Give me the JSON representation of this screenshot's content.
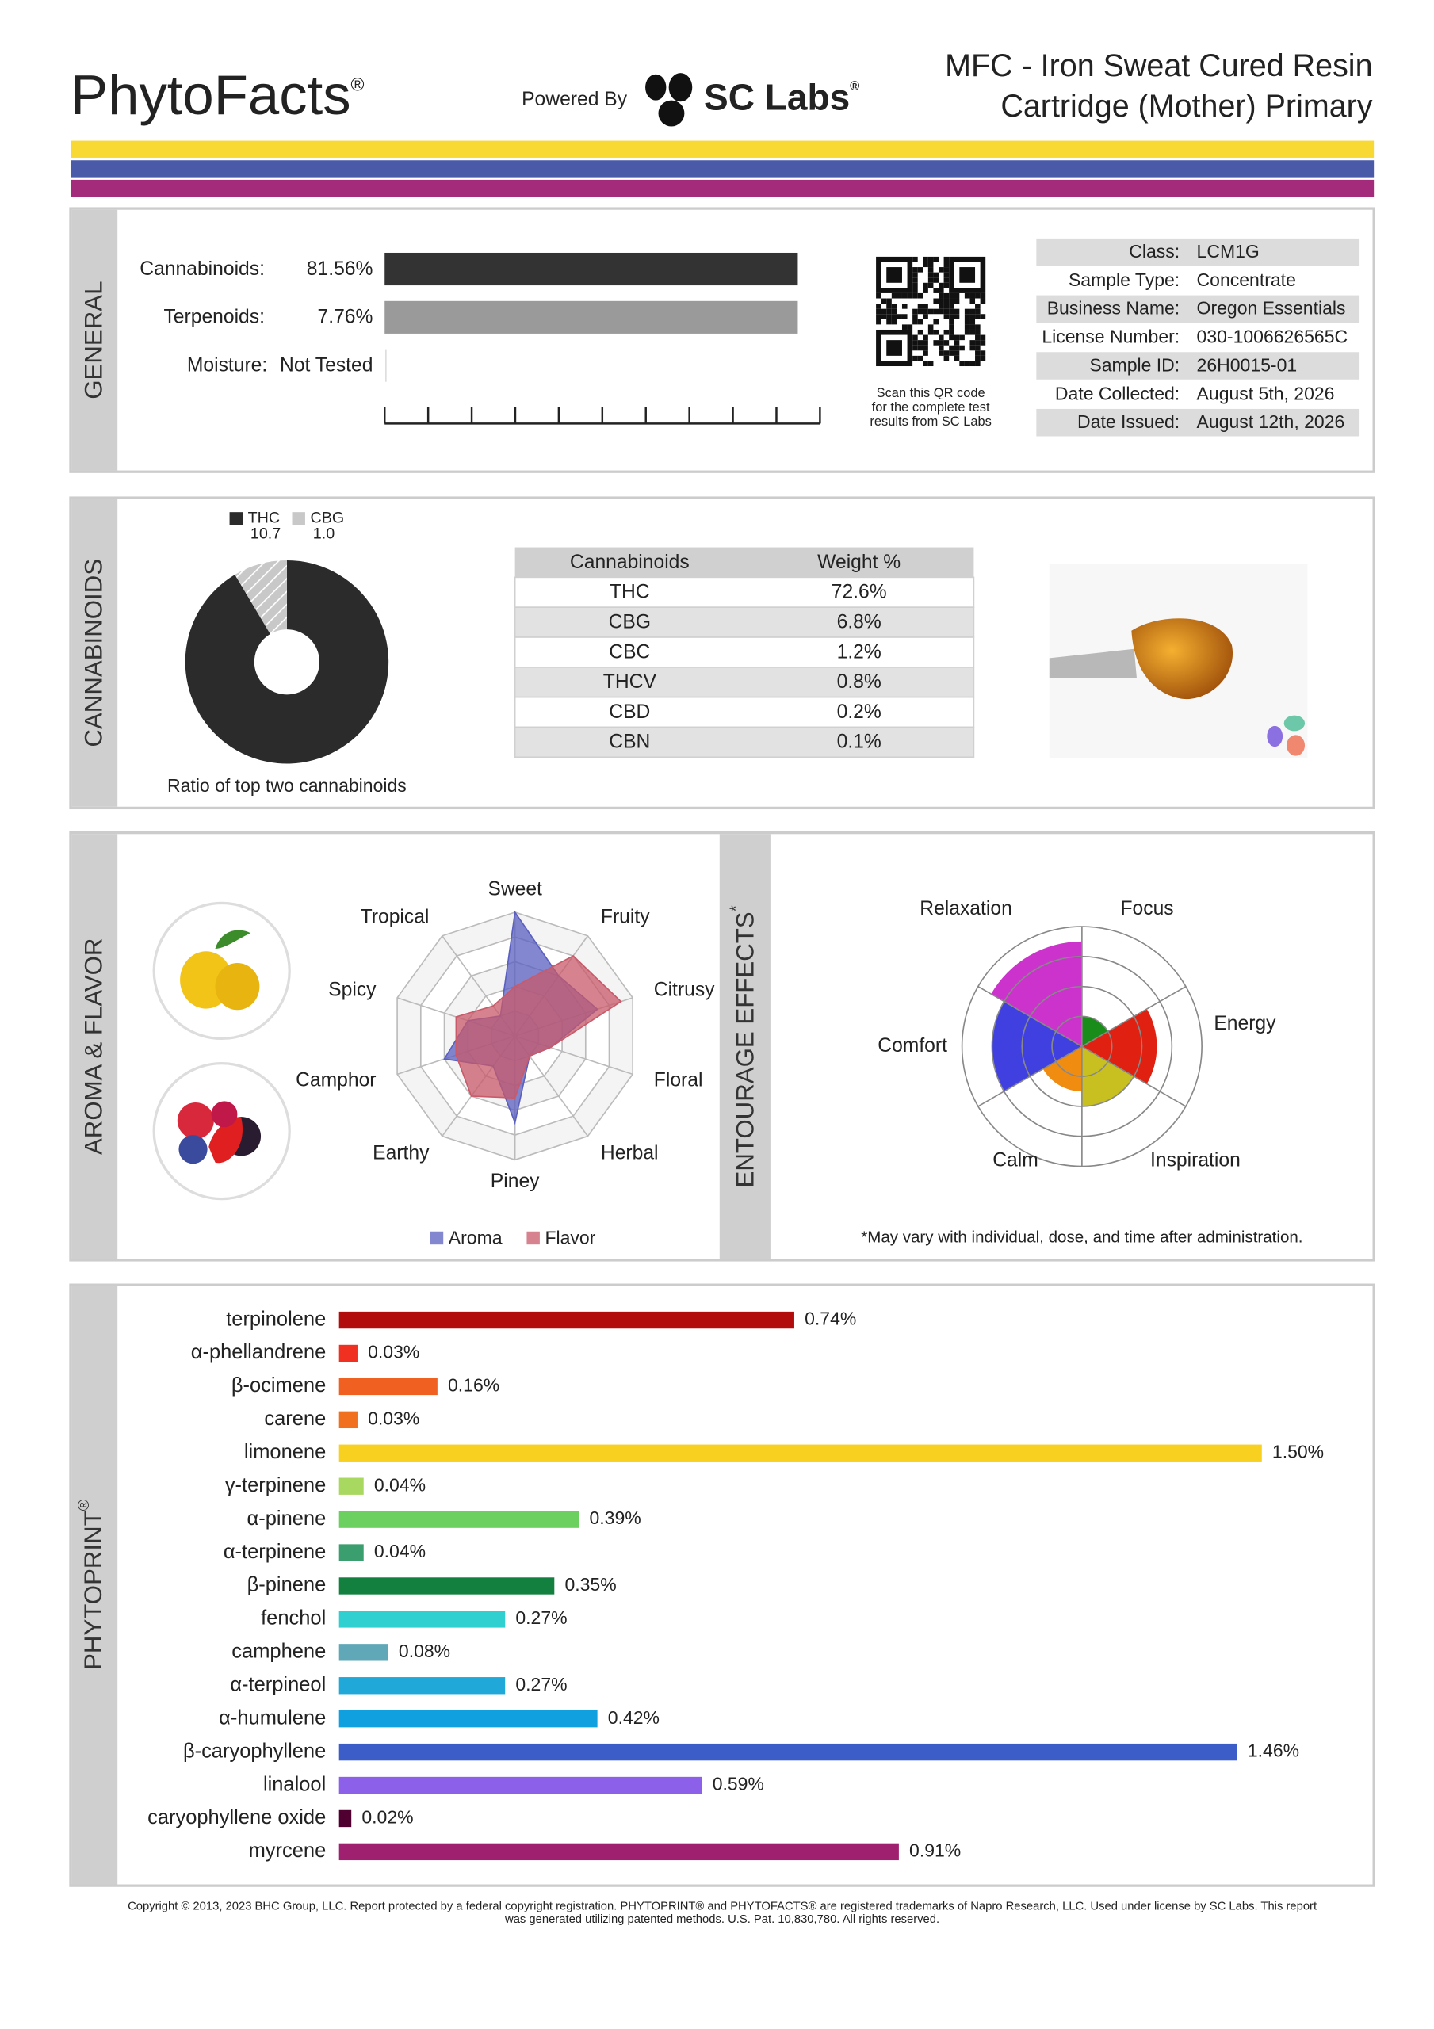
{
  "header": {
    "brand": "PhytoFacts",
    "registered": "®",
    "powered_by": "Powered By",
    "lab": "SC Labs",
    "title": [
      "MFC - Iron Sweat Cured Resin",
      "Cartridge (Mother) Primary"
    ]
  },
  "general": {
    "section": "GENERAL",
    "rows": [
      [
        "Cannabinoids:",
        "81.56%"
      ],
      [
        "Terpenoids:",
        "7.76%"
      ],
      [
        "Moisture:",
        "Not Tested"
      ]
    ],
    "qr_caption": [
      "Scan this QR code",
      "for the complete test",
      "results from SC Labs"
    ],
    "info": [
      [
        "Class:",
        "LCM1G"
      ],
      [
        "Sample Type:",
        "Concentrate"
      ],
      [
        "Business Name:",
        "Oregon Essentials"
      ],
      [
        "License Number:",
        "030-1006626565C"
      ],
      [
        "Sample ID:",
        "26H0015-01"
      ],
      [
        "Date Collected:",
        "August 5th, 2026"
      ],
      [
        "Date Issued:",
        "August 12th, 2026"
      ]
    ]
  },
  "cannabinoids": {
    "section": "CANNABINOIDS",
    "chart_data": {
      "type": "pie",
      "categories": [
        "THC",
        "CBG"
      ],
      "values": [
        10.7,
        1.0
      ],
      "value_labels": [
        "10.7",
        "1.0"
      ],
      "colors": [
        "#2b2b2b",
        "#c8c8c8"
      ],
      "caption": "Ratio of top two cannabinoids"
    },
    "table": {
      "header": [
        "Cannabinoids",
        "Weight %"
      ],
      "rows": [
        [
          "THC",
          "72.6%"
        ],
        [
          "CBG",
          "6.8%"
        ],
        [
          "CBC",
          "1.2%"
        ],
        [
          "THCV",
          "0.8%"
        ],
        [
          "CBD",
          "0.2%"
        ],
        [
          "CBN",
          "0.1%"
        ]
      ]
    }
  },
  "aroma": {
    "section": "AROMA & FLAVOR",
    "chart_data": {
      "type": "radar",
      "categories": [
        "Sweet",
        "Fruity",
        "Citrusy",
        "Floral",
        "Herbal",
        "Piney",
        "Earthy",
        "Camphor",
        "Spicy",
        "Tropical"
      ],
      "rlim": [
        0,
        5
      ],
      "series": [
        {
          "name": "Aroma",
          "color": "#5a5fc0",
          "values": [
            5,
            3,
            3.5,
            1.5,
            1,
            3.5,
            1.5,
            3,
            2,
            1
          ]
        },
        {
          "name": "Flavor",
          "color": "#c85a6a",
          "values": [
            2,
            4,
            4.5,
            1.5,
            1,
            2.5,
            3,
            2.5,
            2.5,
            1.5
          ]
        }
      ]
    }
  },
  "entourage": {
    "section": "ENTOURAGE EFFECTS",
    "section_mark": "*",
    "note": "*May vary with individual, dose, and time after administration.",
    "chart_data": {
      "type": "polar-area",
      "categories": [
        "Focus",
        "Energy",
        "Inspiration",
        "Calm",
        "Comfort",
        "Relaxation"
      ],
      "values": [
        1,
        2.5,
        2,
        1.5,
        3,
        3.5
      ],
      "colors": [
        "#1a8c1a",
        "#e02010",
        "#c8c020",
        "#f08c10",
        "#4040e0",
        "#cc33cc"
      ],
      "rlim": [
        0,
        4
      ]
    }
  },
  "phytoprint": {
    "section": "PHYTOPRINT",
    "section_mark": "®",
    "chart_data": {
      "type": "bar",
      "orientation": "horizontal",
      "categories": [
        "terpinolene",
        "α-phellandrene",
        "β-ocimene",
        "carene",
        "limonene",
        "γ-terpinene",
        "α-pinene",
        "α-terpinene",
        "β-pinene",
        "fenchol",
        "camphene",
        "α-terpineol",
        "α-humulene",
        "β-caryophyllene",
        "linalool",
        "caryophyllene oxide",
        "myrcene"
      ],
      "values": [
        0.74,
        0.03,
        0.16,
        0.03,
        1.5,
        0.04,
        0.39,
        0.04,
        0.35,
        0.27,
        0.08,
        0.27,
        0.42,
        1.46,
        0.59,
        0.02,
        0.91
      ],
      "value_labels": [
        "0.74%",
        "0.03%",
        "0.16%",
        "0.03%",
        "1.50%",
        "0.04%",
        "0.39%",
        "0.04%",
        "0.35%",
        "0.27%",
        "0.08%",
        "0.27%",
        "0.42%",
        "1.46%",
        "0.59%",
        "0.02%",
        "0.91%"
      ],
      "colors": [
        "#b30c0c",
        "#f03020",
        "#f06020",
        "#f07020",
        "#f8d020",
        "#a8d860",
        "#6cd060",
        "#3a9e6e",
        "#148040",
        "#30d0d0",
        "#60a8b8",
        "#20a8d8",
        "#10a0e0",
        "#3c5cc8",
        "#8c60e8",
        "#500030",
        "#a02070"
      ],
      "xlim": [
        0,
        1.5
      ]
    }
  },
  "footer": [
    "Copyright © 2013, 2023 BHC Group, LLC. Report protected by a federal copyright registration. PHYTOPRINT® and PHYTOFACTS® are registered trademarks of Napro Research, LLC. Used under license by SC Labs. This report",
    "was generated utilizing patented methods. U.S. Pat. 10,830,780. All rights reserved."
  ]
}
